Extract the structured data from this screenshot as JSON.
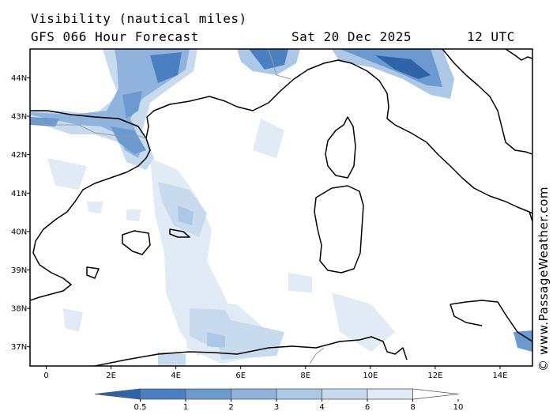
{
  "header": {
    "title": "Visibility (nautical miles)",
    "model_line": "GFS 066 Hour Forecast",
    "date": "Sat 20 Dec 2025",
    "time": "12 UTC"
  },
  "credit": "© www.PassageWeather.com",
  "map": {
    "lon_range": [
      -0.5,
      15.0
    ],
    "lat_range": [
      36.5,
      44.75
    ],
    "lat_labels": [
      "44N",
      "43N",
      "42N",
      "41N",
      "40N",
      "39N",
      "38N",
      "37N"
    ],
    "lat_values": [
      44,
      43,
      42,
      41,
      40,
      39,
      38,
      37
    ],
    "lon_labels": [
      "0",
      "2E",
      "4E",
      "6E",
      "8E",
      "10E",
      "12E",
      "14E"
    ],
    "lon_values": [
      0,
      2,
      4,
      6,
      8,
      10,
      12,
      14
    ],
    "coastline_color": "#000000",
    "border_color": "#999999"
  },
  "legend": {
    "labels": [
      "0.5",
      "1",
      "2",
      "3",
      "4",
      "6",
      "8",
      "10"
    ],
    "colors": [
      "#2e63a8",
      "#4a7fc1",
      "#6c9ad0",
      "#8fb3dc",
      "#adc7e6",
      "#c8daee",
      "#e0ebf6",
      "#ffffff"
    ],
    "unit": "nautical miles"
  }
}
